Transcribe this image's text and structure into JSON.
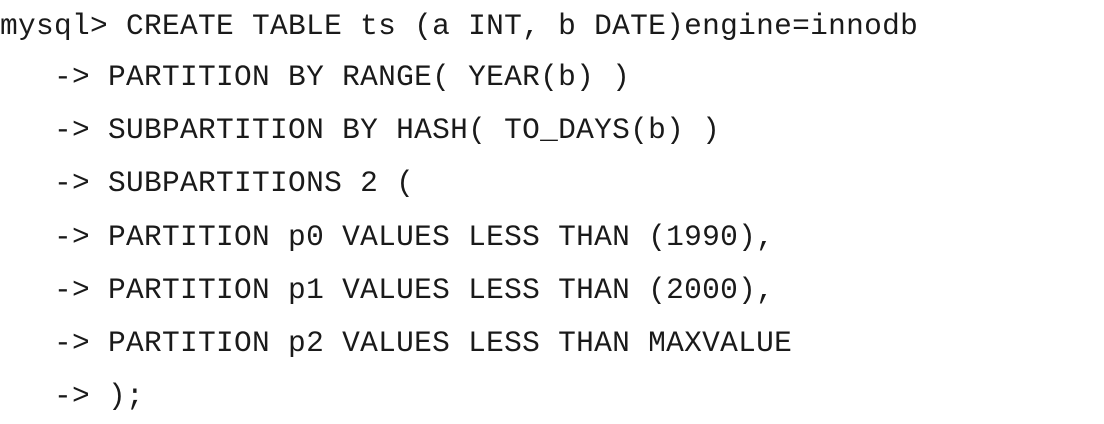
{
  "terminal": {
    "prompt": "mysql> ",
    "continuation": "   -> ",
    "lines": [
      "CREATE TABLE ts (a INT, b DATE)engine=innodb",
      "PARTITION BY RANGE( YEAR(b) )",
      "SUBPARTITION BY HASH( TO_DAYS(b) )",
      "SUBPARTITIONS 2 (",
      "PARTITION p0 VALUES LESS THAN (1990),",
      "PARTITION p1 VALUES LESS THAN (2000),",
      "PARTITION p2 VALUES LESS THAN MAXVALUE",
      ");"
    ]
  }
}
